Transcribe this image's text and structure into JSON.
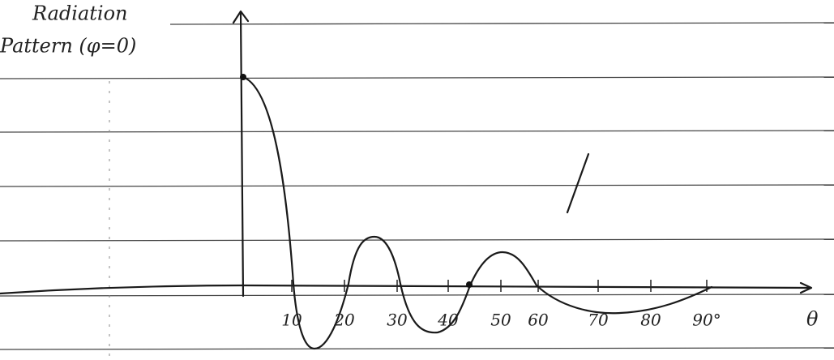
{
  "title": {
    "line1": "Radiation",
    "line2": "Pattern (φ=0)"
  },
  "x_axis": {
    "ticks": [
      "10",
      "20",
      "30",
      "40",
      "50",
      "60",
      "70",
      "80",
      "90°"
    ],
    "label": "θ"
  }
}
